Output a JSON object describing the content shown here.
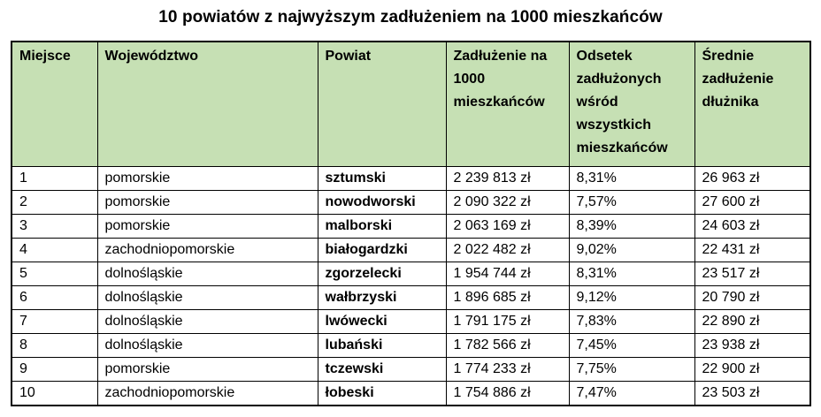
{
  "title": "10 powiatów z najwyższym zadłużeniem na 1000 mieszkańców",
  "colors": {
    "header_bg": "#c6e0b4",
    "border": "#000000",
    "text": "#000000",
    "background": "#ffffff"
  },
  "chart_data": {
    "type": "table",
    "title": "10 powiatów z najwyższym zadłużeniem na 1000 mieszkańców",
    "columns": [
      "Miejsce",
      "Województwo",
      "Powiat",
      "Zadłużenie na 1000 mieszkańców",
      "Odsetek zadłużonych wśród wszystkich mieszkańców",
      "Średnie zadłużenie dłużnika"
    ],
    "rows": [
      [
        "1",
        "pomorskie",
        "sztumski",
        "2 239 813 zł",
        "8,31%",
        "26 963 zł"
      ],
      [
        "2",
        "pomorskie",
        "nowodworski",
        "2 090 322 zł",
        "7,57%",
        "27 600 zł"
      ],
      [
        "3",
        "pomorskie",
        "malborski",
        "2 063 169 zł",
        "8,39%",
        "24 603 zł"
      ],
      [
        "4",
        "zachodniopomorskie",
        "białogardzki",
        "2 022 482 zł",
        "9,02%",
        "22 431 zł"
      ],
      [
        "5",
        "dolnośląskie",
        "zgorzelecki",
        "1 954 744 zł",
        "8,31%",
        "23 517 zł"
      ],
      [
        "6",
        "dolnośląskie",
        "wałbrzyski",
        "1 896 685 zł",
        "9,12%",
        "20 790 zł"
      ],
      [
        "7",
        "dolnośląskie",
        "lwówecki",
        "1 791 175 zł",
        "7,83%",
        "22 890 zł"
      ],
      [
        "8",
        "dolnośląskie",
        "lubański",
        "1 782 566 zł",
        "7,45%",
        "23 938 zł"
      ],
      [
        "9",
        "pomorskie",
        "tczewski",
        "1 774 233 zł",
        "7,75%",
        "22 900 zł"
      ],
      [
        "10",
        "zachodniopomorskie",
        "łobeski",
        "1 754 886 zł",
        "7,47%",
        "23 503 zł"
      ]
    ]
  }
}
